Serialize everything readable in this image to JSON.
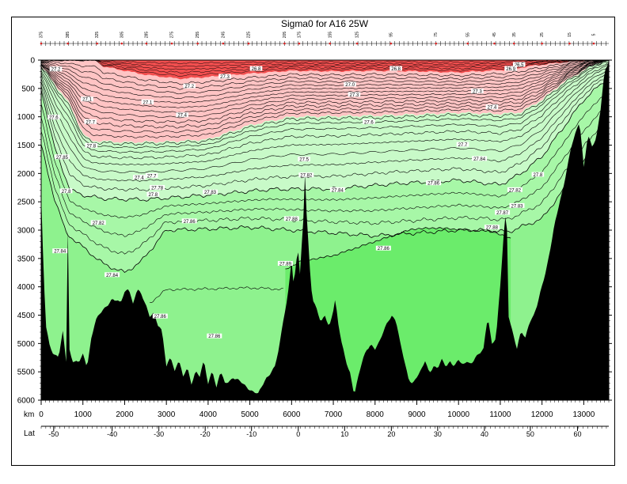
{
  "chart_data": {
    "type": "heatmap",
    "title": "Sigma0 for A16 25W",
    "x_axis_label": "km",
    "x_ticks": [
      0,
      1000,
      2000,
      3000,
      4000,
      5000,
      6000,
      7000,
      8000,
      9000,
      10000,
      11000,
      12000,
      13000
    ],
    "xlim": [
      0,
      13600
    ],
    "y_ticks": [
      0,
      500,
      1000,
      1500,
      2000,
      2500,
      3000,
      3500,
      4000,
      4500,
      5000,
      5500,
      6000
    ],
    "ylim": [
      6000,
      0
    ],
    "lat_axis_label": "Lat",
    "lat_ticks": [
      {
        "label": "-50",
        "km": 300
      },
      {
        "label": "-40",
        "km": 1700
      },
      {
        "label": "-30",
        "km": 2820
      },
      {
        "label": "-20",
        "km": 3930
      },
      {
        "label": "-10",
        "km": 5040
      },
      {
        "label": "0",
        "km": 6160
      },
      {
        "label": "10",
        "km": 7270
      },
      {
        "label": "20",
        "km": 8390
      },
      {
        "label": "30",
        "km": 9500
      },
      {
        "label": "40",
        "km": 10620
      },
      {
        "label": "50",
        "km": 11720
      },
      {
        "label": "60",
        "km": 12850
      }
    ],
    "station_labels": [
      {
        "label": "375",
        "km": 0
      },
      {
        "label": "385",
        "km": 640
      },
      {
        "label": "325",
        "km": 1340
      },
      {
        "label": "305",
        "km": 1930
      },
      {
        "label": "285",
        "km": 2520
      },
      {
        "label": "275",
        "km": 3130
      },
      {
        "label": "255",
        "km": 3750
      },
      {
        "label": "245",
        "km": 4360
      },
      {
        "label": "225",
        "km": 4970
      },
      {
        "label": "205",
        "km": 5830
      },
      {
        "label": "175",
        "km": 6180
      },
      {
        "label": "155",
        "km": 6920
      },
      {
        "label": "125",
        "km": 7570
      },
      {
        "label": "95",
        "km": 8380
      },
      {
        "label": "75",
        "km": 9460
      },
      {
        "label": "55",
        "km": 10220
      },
      {
        "label": "45",
        "km": 10860
      },
      {
        "label": "35",
        "km": 11330
      },
      {
        "label": "25",
        "km": 12000
      },
      {
        "label": "15",
        "km": 12660
      },
      {
        "label": "5",
        "km": 13240
      }
    ],
    "color_bands": [
      {
        "range": "< 27.0",
        "color": "#f24f4f"
      },
      {
        "range": "27.0 – 27.8",
        "color": "#ffc4c4"
      },
      {
        "range": "27.8 – 27.84",
        "color": "#c8fac8"
      },
      {
        "range": "27.84 – 27.88",
        "color": "#a7f7a7"
      },
      {
        "range": "27.88 – 27.90",
        "color": "#8ef28e"
      },
      {
        "range": "> 27.90",
        "color": "#6bec6b"
      }
    ],
    "contour_labels": [
      {
        "text": "27.2",
        "km": 350,
        "depth": 170
      },
      {
        "text": "27.1",
        "km": 1100,
        "depth": 700
      },
      {
        "text": "27.6",
        "km": 300,
        "depth": 1020
      },
      {
        "text": "27.7",
        "km": 1180,
        "depth": 1100
      },
      {
        "text": "27.8",
        "km": 1200,
        "depth": 1520
      },
      {
        "text": "27.85",
        "km": 500,
        "depth": 1720
      },
      {
        "text": "27.8",
        "km": 600,
        "depth": 2320
      },
      {
        "text": "27.82",
        "km": 1370,
        "depth": 2880
      },
      {
        "text": "27.84",
        "km": 450,
        "depth": 3380
      },
      {
        "text": "27.84",
        "km": 1700,
        "depth": 3800
      },
      {
        "text": "27.1",
        "km": 2550,
        "depth": 750
      },
      {
        "text": "27.4",
        "km": 3380,
        "depth": 980
      },
      {
        "text": "27.2",
        "km": 3550,
        "depth": 470
      },
      {
        "text": "27.3",
        "km": 4400,
        "depth": 300
      },
      {
        "text": "26.8",
        "km": 5150,
        "depth": 160
      },
      {
        "text": "27.4",
        "km": 2350,
        "depth": 2080
      },
      {
        "text": "27.7",
        "km": 2650,
        "depth": 2050
      },
      {
        "text": "27.78",
        "km": 2780,
        "depth": 2260
      },
      {
        "text": "27.8",
        "km": 2680,
        "depth": 2380
      },
      {
        "text": "27.83",
        "km": 4050,
        "depth": 2340
      },
      {
        "text": "27.86",
        "km": 3550,
        "depth": 2850
      },
      {
        "text": "27.86",
        "km": 2850,
        "depth": 4530
      },
      {
        "text": "27.86",
        "km": 4150,
        "depth": 4880
      },
      {
        "text": "27.88",
        "km": 6000,
        "depth": 2810
      },
      {
        "text": "27.89",
        "km": 5850,
        "depth": 3600
      },
      {
        "text": "27.82",
        "km": 6350,
        "depth": 2040
      },
      {
        "text": "27.5",
        "km": 6300,
        "depth": 1760
      },
      {
        "text": "27.6",
        "km": 7850,
        "depth": 1100
      },
      {
        "text": "27.3",
        "km": 7500,
        "depth": 620
      },
      {
        "text": "27.0",
        "km": 7400,
        "depth": 440
      },
      {
        "text": "26.8",
        "km": 8500,
        "depth": 160
      },
      {
        "text": "27.84",
        "km": 7100,
        "depth": 2300
      },
      {
        "text": "27.86",
        "km": 8200,
        "depth": 3330
      },
      {
        "text": "27.86",
        "km": 9400,
        "depth": 2180
      },
      {
        "text": "27.3",
        "km": 10450,
        "depth": 560
      },
      {
        "text": "27.4",
        "km": 10800,
        "depth": 840
      },
      {
        "text": "27.7",
        "km": 10100,
        "depth": 1500
      },
      {
        "text": "27.84",
        "km": 10500,
        "depth": 1750
      },
      {
        "text": "27.88",
        "km": 10800,
        "depth": 2960
      },
      {
        "text": "27.87",
        "km": 11050,
        "depth": 2700
      },
      {
        "text": "27.82",
        "km": 11350,
        "depth": 2300
      },
      {
        "text": "27.83",
        "km": 11400,
        "depth": 2580
      },
      {
        "text": "27.8",
        "km": 11900,
        "depth": 2030
      },
      {
        "text": "26.5",
        "km": 11450,
        "depth": 90
      },
      {
        "text": "26.9",
        "km": 11250,
        "depth": 160
      }
    ]
  }
}
